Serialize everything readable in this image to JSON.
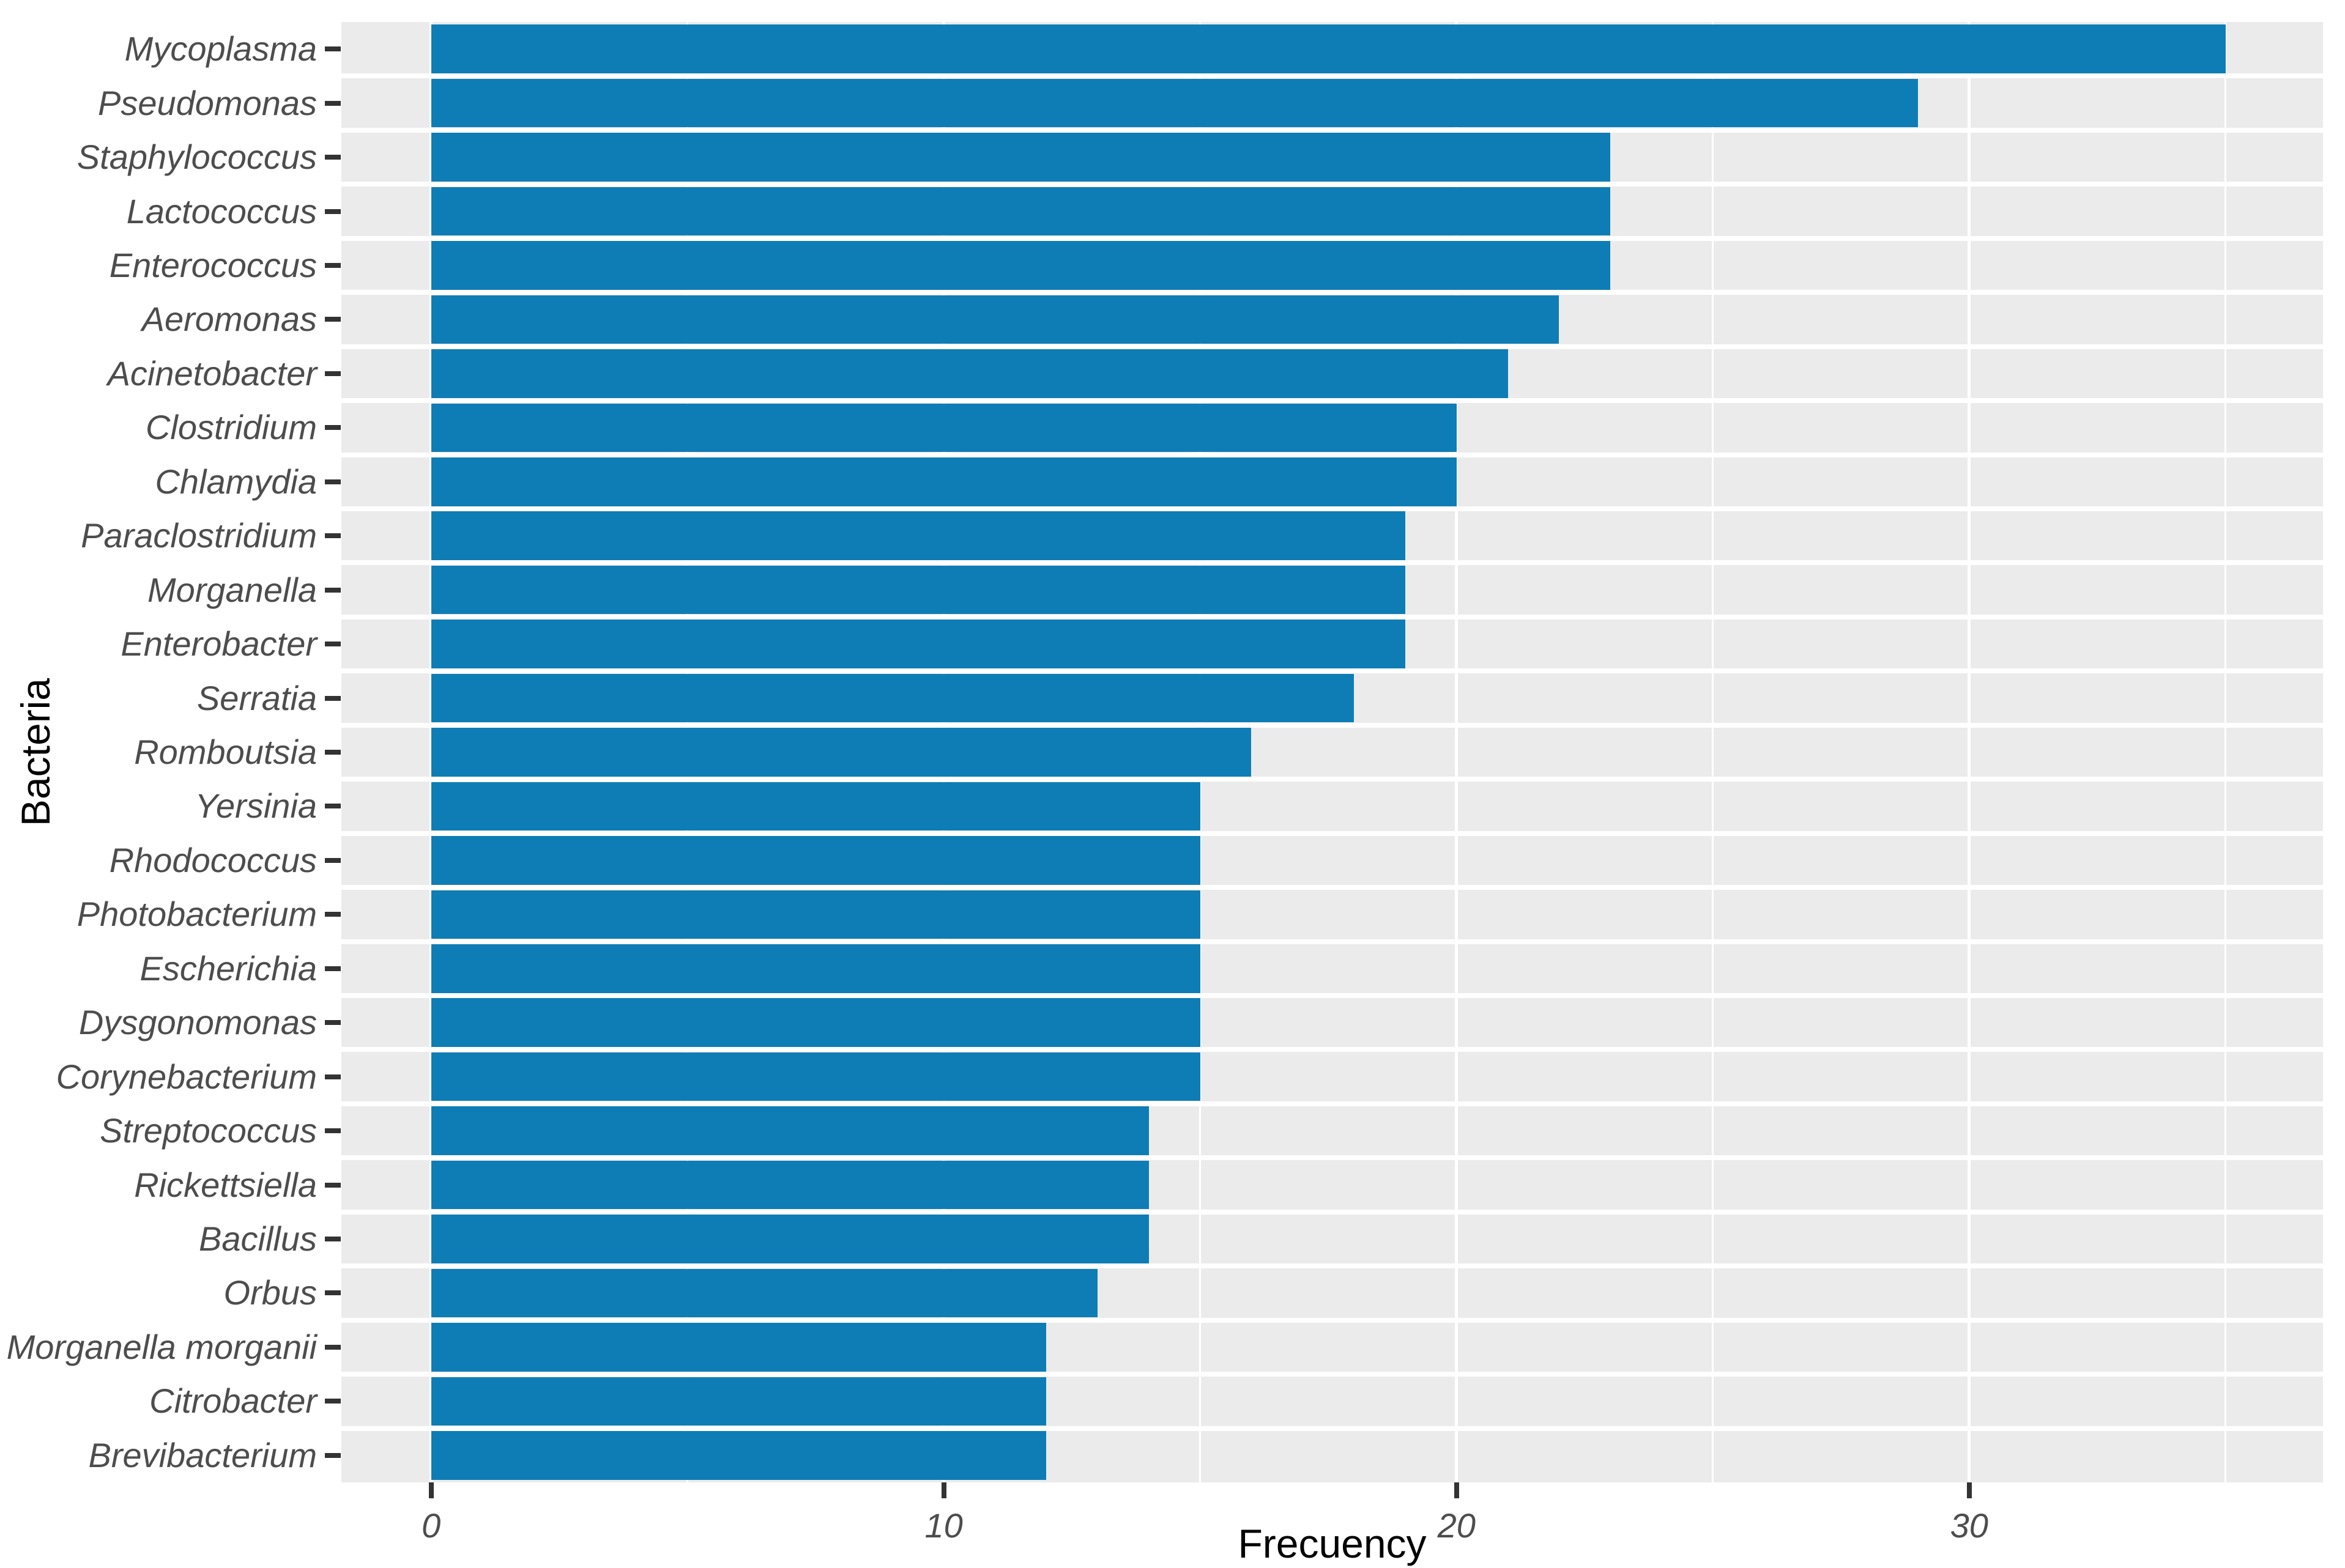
{
  "chart_data": {
    "type": "bar",
    "orientation": "horizontal",
    "title": "",
    "xlabel": "Frecuency",
    "ylabel": "Bacteria",
    "categories": [
      "Mycoplasma",
      "Pseudomonas",
      "Staphylococcus",
      "Lactococcus",
      "Enterococcus",
      "Aeromonas",
      "Acinetobacter",
      "Clostridium",
      "Chlamydia",
      "Paraclostridium",
      "Morganella",
      "Enterobacter",
      "Serratia",
      "Romboutsia",
      "Yersinia",
      "Rhodococcus",
      "Photobacterium",
      "Escherichia",
      "Dysgonomonas",
      "Corynebacterium",
      "Streptococcus",
      "Rickettsiella",
      "Bacillus",
      "Orbus",
      "Morganella morganii",
      "Citrobacter",
      "Brevibacterium"
    ],
    "values": [
      35,
      29,
      23,
      23,
      23,
      22,
      21,
      20,
      20,
      19,
      19,
      19,
      18,
      16,
      15,
      15,
      15,
      15,
      15,
      15,
      14,
      14,
      14,
      13,
      12,
      12,
      12
    ],
    "x_major_ticks": [
      0,
      10,
      20,
      30
    ],
    "x_minor_ticks": [
      5,
      15,
      25,
      35
    ],
    "xlim": [
      -1.75,
      36.9
    ],
    "grid": "on",
    "legend": "none",
    "colors": {
      "bar": "#0E7DB5",
      "panel_background": "#EBEBEB",
      "gridline": "#FFFFFF",
      "tick_label": "#4D4D4D",
      "axis_title": "#000000",
      "tick_mark": "#333333",
      "figure_background": "#FFFFFF"
    }
  }
}
